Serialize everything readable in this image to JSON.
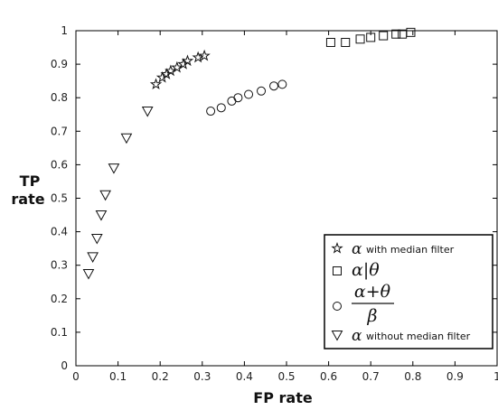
{
  "chart_data": {
    "type": "scatter",
    "xlabel": "FP rate",
    "ylabel": [
      "TP",
      "rate"
    ],
    "xlim": [
      0,
      1
    ],
    "ylim": [
      0,
      1
    ],
    "x_ticks": [
      "0",
      "0.1",
      "0.2",
      "0.3",
      "0.4",
      "0.5",
      "0.6",
      "0.7",
      "0.8",
      "0.9",
      "1"
    ],
    "y_ticks": [
      "0",
      "0.1",
      "0.2",
      "0.3",
      "0.4",
      "0.5",
      "0.6",
      "0.7",
      "0.8",
      "0.9",
      "1"
    ],
    "grid": false,
    "legend_position": "bottom-right",
    "series": [
      {
        "name": "α with median filter",
        "legend_symbol": "α",
        "legend_text": "with median filter",
        "marker": "star",
        "x": [
          0.19,
          0.205,
          0.215,
          0.225,
          0.24,
          0.255,
          0.265,
          0.29,
          0.305
        ],
        "y": [
          0.84,
          0.86,
          0.87,
          0.88,
          0.89,
          0.9,
          0.91,
          0.92,
          0.925
        ]
      },
      {
        "name": "α|θ",
        "legend_symbol": "α|θ",
        "marker": "square",
        "x": [
          0.605,
          0.64,
          0.675,
          0.7,
          0.73,
          0.76,
          0.775,
          0.795
        ],
        "y": [
          0.965,
          0.965,
          0.975,
          0.98,
          0.985,
          0.99,
          0.99,
          0.995
        ]
      },
      {
        "name": "(α+θ)/β",
        "legend_numerator": "α+θ",
        "legend_denominator": "β",
        "marker": "circle",
        "x": [
          0.32,
          0.345,
          0.37,
          0.385,
          0.41,
          0.44,
          0.47,
          0.49
        ],
        "y": [
          0.76,
          0.77,
          0.79,
          0.8,
          0.81,
          0.82,
          0.835,
          0.84
        ]
      },
      {
        "name": "α without median filter",
        "legend_symbol": "α",
        "legend_text": "without median filter",
        "marker": "triangle-down",
        "x": [
          0.03,
          0.04,
          0.05,
          0.06,
          0.07,
          0.09,
          0.12,
          0.17
        ],
        "y": [
          0.275,
          0.325,
          0.38,
          0.45,
          0.51,
          0.59,
          0.68,
          0.76
        ]
      }
    ]
  }
}
